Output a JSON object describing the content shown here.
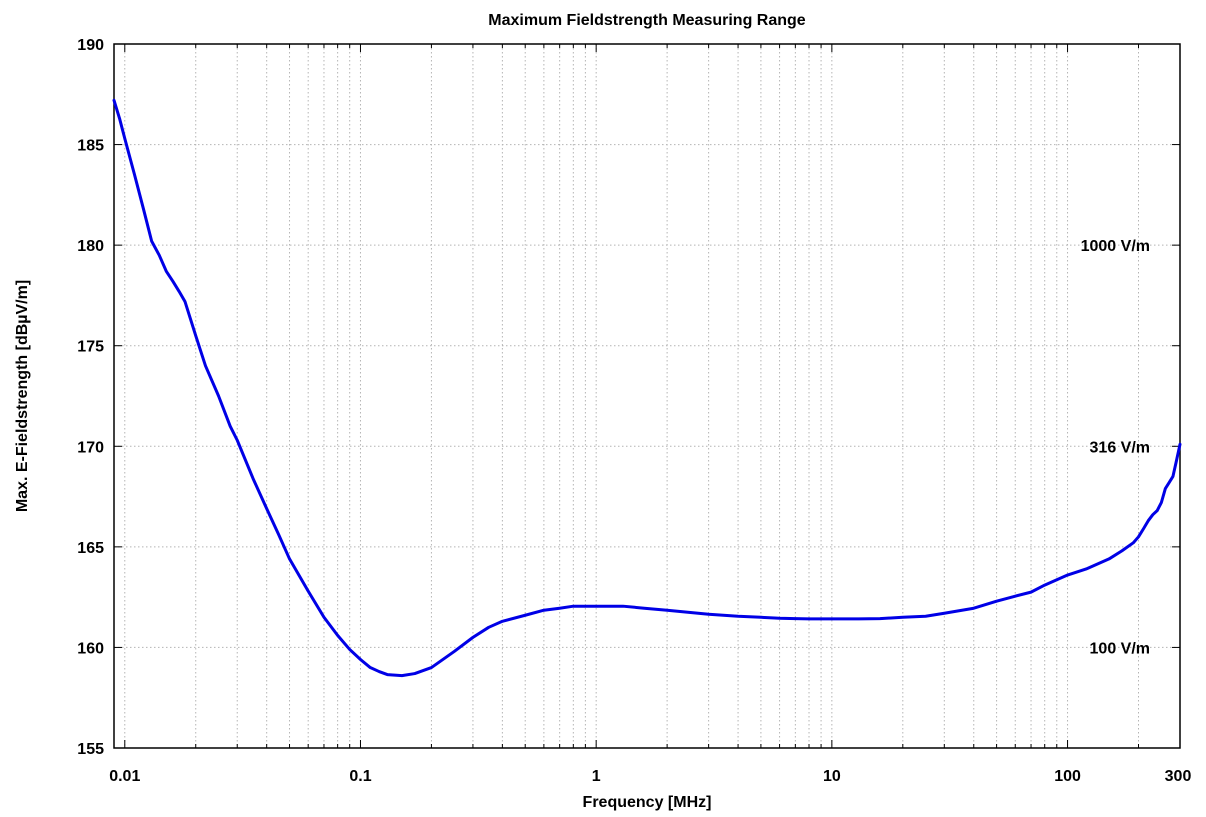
{
  "chart_data": {
    "type": "line",
    "title": "Maximum Fieldstrength Measuring Range",
    "xlabel": "Frequency [MHz]",
    "ylabel": "Max. E-Fieldstrength [dBµV/m]",
    "xscale": "log",
    "xlim": [
      0.009,
      300
    ],
    "ylim": [
      155,
      190
    ],
    "grid": true,
    "x_ticks": [
      {
        "value": 0.01,
        "label": "0.01"
      },
      {
        "value": 0.1,
        "label": "0.1"
      },
      {
        "value": 1,
        "label": "1"
      },
      {
        "value": 10,
        "label": "10"
      },
      {
        "value": 100,
        "label": "100"
      },
      {
        "value": 300,
        "label": "300"
      }
    ],
    "y_ticks": [
      {
        "value": 155,
        "label": "155"
      },
      {
        "value": 160,
        "label": "160"
      },
      {
        "value": 165,
        "label": "165"
      },
      {
        "value": 170,
        "label": "170"
      },
      {
        "value": 175,
        "label": "175"
      },
      {
        "value": 180,
        "label": "180"
      },
      {
        "value": 185,
        "label": "185"
      },
      {
        "value": 190,
        "label": "190"
      }
    ],
    "annotations": [
      {
        "text": "1000 V/m",
        "y": 180
      },
      {
        "text": "316 V/m",
        "y": 170
      },
      {
        "text": "100 V/m",
        "y": 160
      }
    ],
    "series": [
      {
        "color": "#0000e6",
        "x": [
          0.009,
          0.0095,
          0.01,
          0.011,
          0.012,
          0.013,
          0.014,
          0.015,
          0.016,
          0.017,
          0.018,
          0.02,
          0.022,
          0.025,
          0.028,
          0.03,
          0.035,
          0.04,
          0.045,
          0.05,
          0.06,
          0.07,
          0.08,
          0.09,
          0.1,
          0.11,
          0.12,
          0.13,
          0.15,
          0.17,
          0.2,
          0.25,
          0.3,
          0.35,
          0.4,
          0.5,
          0.6,
          0.7,
          0.8,
          1,
          1.3,
          1.6,
          2,
          3,
          4,
          5,
          6,
          7,
          8,
          10,
          13,
          16,
          20,
          25,
          30,
          40,
          50,
          60,
          70,
          80,
          100,
          120,
          150,
          170,
          190,
          200,
          210,
          220,
          230,
          240,
          250,
          260,
          270,
          280,
          290,
          300
        ],
        "y": [
          187.2,
          186.3,
          185.3,
          183.5,
          181.8,
          180.2,
          179.5,
          178.7,
          178.2,
          177.7,
          177.2,
          175.5,
          174.0,
          172.5,
          171.0,
          170.3,
          168.4,
          166.9,
          165.6,
          164.4,
          162.8,
          161.5,
          160.6,
          159.9,
          159.4,
          159.0,
          158.8,
          158.65,
          158.6,
          158.7,
          159.0,
          159.8,
          160.5,
          161.0,
          161.3,
          161.6,
          161.85,
          161.95,
          162.05,
          162.05,
          162.05,
          161.95,
          161.85,
          161.65,
          161.55,
          161.5,
          161.45,
          161.43,
          161.42,
          161.42,
          161.42,
          161.43,
          161.5,
          161.55,
          161.7,
          161.95,
          162.3,
          162.55,
          162.75,
          163.1,
          163.6,
          163.9,
          164.4,
          164.8,
          165.2,
          165.5,
          165.9,
          166.3,
          166.6,
          166.8,
          167.2,
          167.9,
          168.2,
          168.5,
          169.3,
          170.1
        ]
      }
    ]
  }
}
